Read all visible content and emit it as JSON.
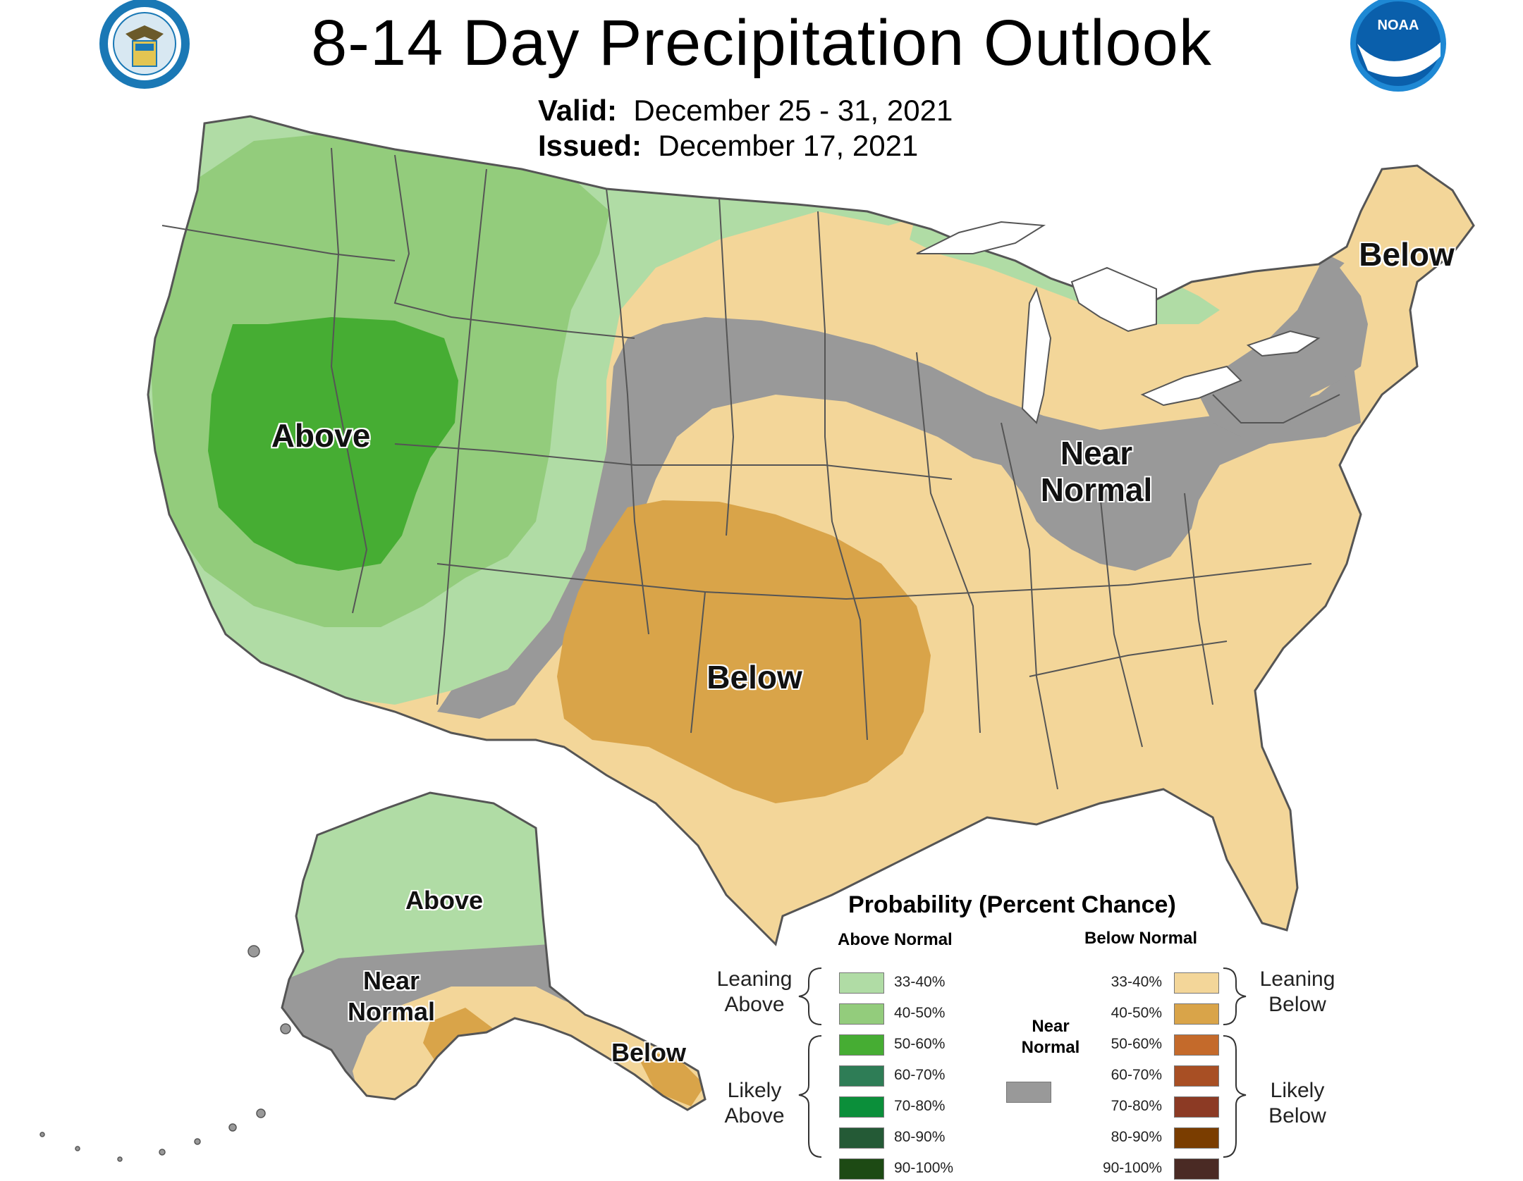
{
  "title": "8-14 Day Precipitation Outlook",
  "valid_label": "Valid:",
  "valid_value": "December 25 - 31, 2021",
  "issued_label": "Issued:",
  "issued_value": "December 17, 2021",
  "logos": {
    "left": "department-of-commerce-seal",
    "right": "noaa-logo",
    "right_text": "NOAA"
  },
  "map_labels": {
    "conus_above": "Above",
    "conus_below_southwest": "Below",
    "conus_below_northeast": "Below",
    "conus_near_normal_line1": "Near",
    "conus_near_normal_line2": "Normal",
    "alaska_above": "Above",
    "alaska_near_line1": "Near",
    "alaska_near_line2": "Normal",
    "alaska_below": "Below"
  },
  "colors": {
    "above_33_40": "#b0dca5",
    "above_40_50": "#93cc7c",
    "above_50_60": "#46ad33",
    "near_normal": "#999999",
    "below_33_40": "#f3d699",
    "below_40_50": "#d9a449",
    "water": "#ffffff"
  },
  "legend": {
    "title": "Probability (Percent Chance)",
    "above_header": "Above Normal",
    "below_header": "Below Normal",
    "leaning_above": [
      "Leaning",
      "Above"
    ],
    "likely_above": [
      "Likely",
      "Above"
    ],
    "leaning_below": [
      "Leaning",
      "Below"
    ],
    "likely_below": [
      "Likely",
      "Below"
    ],
    "near_normal": [
      "Near",
      "Normal"
    ],
    "near_color": "#999999",
    "above": [
      {
        "pct": "33-40%",
        "color": "#b0dca5"
      },
      {
        "pct": "40-50%",
        "color": "#93cc7c"
      },
      {
        "pct": "50-60%",
        "color": "#46ad33"
      },
      {
        "pct": "60-70%",
        "color": "#2e7d56"
      },
      {
        "pct": "70-80%",
        "color": "#0b8f3a"
      },
      {
        "pct": "80-90%",
        "color": "#245a36"
      },
      {
        "pct": "90-100%",
        "color": "#1d4a14"
      }
    ],
    "below": [
      {
        "pct": "33-40%",
        "color": "#f3d699"
      },
      {
        "pct": "40-50%",
        "color": "#d9a449"
      },
      {
        "pct": "50-60%",
        "color": "#c46a2b"
      },
      {
        "pct": "60-70%",
        "color": "#a84f24"
      },
      {
        "pct": "70-80%",
        "color": "#8c3a24"
      },
      {
        "pct": "80-90%",
        "color": "#7a3d00"
      },
      {
        "pct": "90-100%",
        "color": "#4a2a24"
      }
    ]
  }
}
